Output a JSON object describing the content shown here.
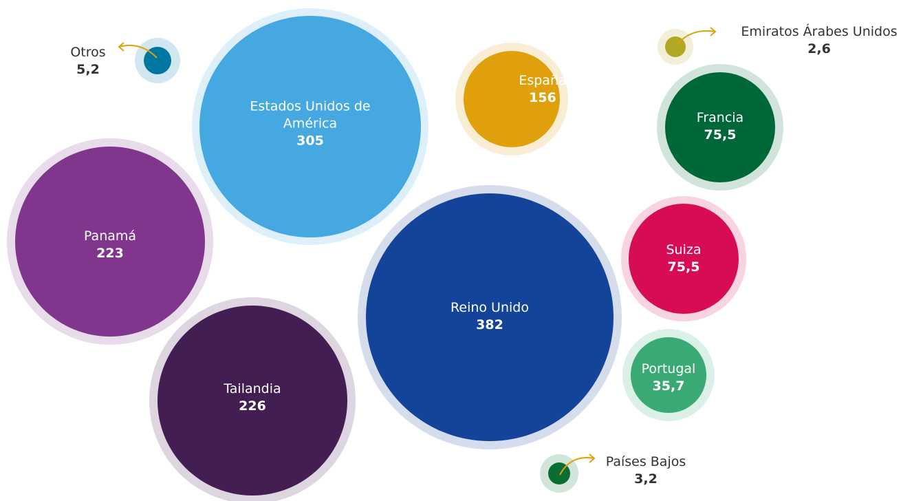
{
  "chart_data": {
    "type": "bubble",
    "categories": [
      "Otros",
      "Estados Unidos de América",
      "España",
      "Emiratos Árabes Unidos",
      "Francia",
      "Panamá",
      "Reino Unido",
      "Suiza",
      "Tailandia",
      "Portugal",
      "Países Bajos"
    ],
    "values": [
      5.2,
      305,
      156,
      2.6,
      75.5,
      223,
      382,
      75.5,
      226,
      35.7,
      3.2
    ],
    "value_labels": [
      "5,2",
      "305",
      "156",
      "2,6",
      "75,5",
      "223",
      "382",
      "75,5",
      "226",
      "35,7",
      "3,2"
    ],
    "colors": [
      "#0077a0",
      "#45a8e0",
      "#e0a00c",
      "#b0a824",
      "#006838",
      "#80368c",
      "#14449a",
      "#d80c54",
      "#421e52",
      "#3aaa74",
      "#0a6e30"
    ]
  }
}
